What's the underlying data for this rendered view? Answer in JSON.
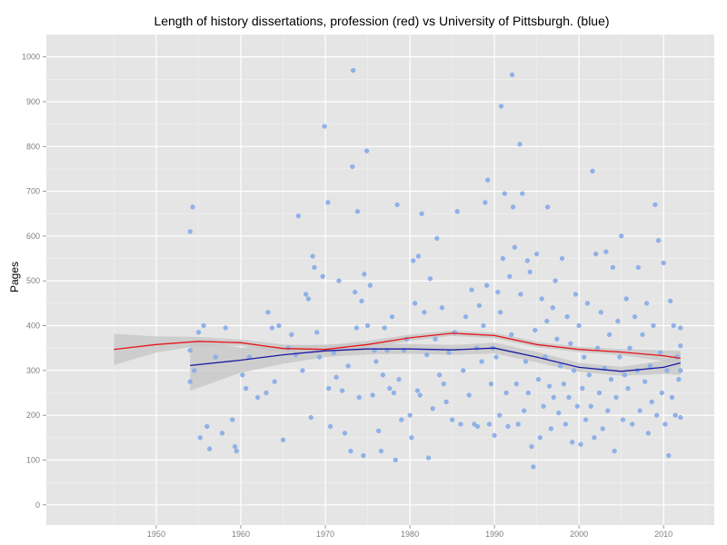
{
  "chart_data": {
    "type": "scatter",
    "title": "Length of history dissertations, profession (red) vs University of Pittsburgh. (blue)",
    "xlabel": "",
    "ylabel": "Pages",
    "xlim": [
      1937,
      2016
    ],
    "ylim": [
      -45,
      1050
    ],
    "x_ticks": [
      1950,
      1960,
      1970,
      1980,
      1990,
      2000,
      2010
    ],
    "y_ticks": [
      0,
      100,
      200,
      300,
      400,
      500,
      600,
      700,
      800,
      900,
      1000
    ],
    "grid": true,
    "legend": "none",
    "colors": {
      "panel": "#e5e5e5",
      "grid_major": "#ffffff",
      "grid_minor": "#f2f2f2",
      "points": "#8fb2ea",
      "profession_line": "#e8141a",
      "pitt_line": "#1a1aa3",
      "confidence_band": "#c4c4c4",
      "tick_text": "#7f7f7f"
    },
    "series": [
      {
        "name": "",
        "kind": "points",
        "points": [
          [
            1954,
            610
          ],
          [
            1954.3,
            665
          ],
          [
            1954,
            345
          ],
          [
            1954.5,
            300
          ],
          [
            1954,
            275
          ],
          [
            1955,
            385
          ],
          [
            1955.2,
            150
          ],
          [
            1955.6,
            400
          ],
          [
            1956,
            175
          ],
          [
            1956.3,
            125
          ],
          [
            1957,
            330
          ],
          [
            1957.8,
            160
          ],
          [
            1958.2,
            395
          ],
          [
            1959,
            190
          ],
          [
            1959.3,
            130
          ],
          [
            1959.5,
            120
          ],
          [
            1960.2,
            290
          ],
          [
            1960.6,
            260
          ],
          [
            1961,
            330
          ],
          [
            1962,
            240
          ],
          [
            1963,
            250
          ],
          [
            1963.2,
            430
          ],
          [
            1963.7,
            395
          ],
          [
            1964,
            275
          ],
          [
            1964.5,
            400
          ],
          [
            1965,
            145
          ],
          [
            1965.6,
            350
          ],
          [
            1966,
            380
          ],
          [
            1966.5,
            335
          ],
          [
            1966.8,
            645
          ],
          [
            1967.3,
            300
          ],
          [
            1967.7,
            470
          ],
          [
            1968,
            460
          ],
          [
            1968.3,
            195
          ],
          [
            1968.5,
            555
          ],
          [
            1968.7,
            530
          ],
          [
            1969,
            385
          ],
          [
            1969.3,
            330
          ],
          [
            1969.7,
            510
          ],
          [
            1969.9,
            845
          ],
          [
            1970.3,
            675
          ],
          [
            1970.4,
            260
          ],
          [
            1970.6,
            175
          ],
          [
            1971,
            340
          ],
          [
            1971.3,
            285
          ],
          [
            1971.6,
            500
          ],
          [
            1972,
            255
          ],
          [
            1972.3,
            160
          ],
          [
            1972.7,
            310
          ],
          [
            1973,
            120
          ],
          [
            1973.2,
            755
          ],
          [
            1973.3,
            970
          ],
          [
            1973.5,
            475
          ],
          [
            1973.7,
            395
          ],
          [
            1973.8,
            655
          ],
          [
            1974,
            240
          ],
          [
            1974.3,
            455
          ],
          [
            1974.5,
            110
          ],
          [
            1974.6,
            515
          ],
          [
            1974.9,
            790
          ],
          [
            1975,
            400
          ],
          [
            1975.3,
            490
          ],
          [
            1975.6,
            245
          ],
          [
            1975.8,
            345
          ],
          [
            1976,
            320
          ],
          [
            1976.3,
            165
          ],
          [
            1976.6,
            120
          ],
          [
            1976.8,
            290
          ],
          [
            1977,
            395
          ],
          [
            1977.3,
            345
          ],
          [
            1977.6,
            260
          ],
          [
            1977.9,
            420
          ],
          [
            1978.1,
            250
          ],
          [
            1978.3,
            100
          ],
          [
            1978.5,
            670
          ],
          [
            1978.7,
            280
          ],
          [
            1979,
            190
          ],
          [
            1979.3,
            345
          ],
          [
            1979.6,
            370
          ],
          [
            1980,
            200
          ],
          [
            1980.2,
            150
          ],
          [
            1980.4,
            545
          ],
          [
            1980.6,
            450
          ],
          [
            1980.9,
            255
          ],
          [
            1981,
            555
          ],
          [
            1981.2,
            245
          ],
          [
            1981.4,
            650
          ],
          [
            1981.7,
            430
          ],
          [
            1982,
            335
          ],
          [
            1982.2,
            105
          ],
          [
            1982.4,
            505
          ],
          [
            1982.7,
            215
          ],
          [
            1983,
            370
          ],
          [
            1983.2,
            595
          ],
          [
            1983.5,
            290
          ],
          [
            1983.8,
            440
          ],
          [
            1984,
            270
          ],
          [
            1984.3,
            230
          ],
          [
            1984.6,
            340
          ],
          [
            1985,
            190
          ],
          [
            1985.3,
            385
          ],
          [
            1985.6,
            655
          ],
          [
            1986,
            180
          ],
          [
            1986.3,
            300
          ],
          [
            1986.6,
            420
          ],
          [
            1987,
            245
          ],
          [
            1987.3,
            480
          ],
          [
            1987.6,
            180
          ],
          [
            1987.9,
            350
          ],
          [
            1988,
            175
          ],
          [
            1988.2,
            445
          ],
          [
            1988.5,
            320
          ],
          [
            1988.7,
            400
          ],
          [
            1988.9,
            675
          ],
          [
            1989.1,
            490
          ],
          [
            1989.2,
            725
          ],
          [
            1989.4,
            180
          ],
          [
            1989.6,
            270
          ],
          [
            1989.8,
            350
          ],
          [
            1990,
            155
          ],
          [
            1990.2,
            330
          ],
          [
            1990.4,
            475
          ],
          [
            1990.6,
            200
          ],
          [
            1990.7,
            430
          ],
          [
            1990.8,
            890
          ],
          [
            1991,
            550
          ],
          [
            1991.2,
            695
          ],
          [
            1991.4,
            250
          ],
          [
            1991.6,
            175
          ],
          [
            1991.8,
            510
          ],
          [
            1992,
            380
          ],
          [
            1992.1,
            960
          ],
          [
            1992.2,
            665
          ],
          [
            1992.4,
            575
          ],
          [
            1992.6,
            270
          ],
          [
            1992.8,
            180
          ],
          [
            1993,
            805
          ],
          [
            1993.1,
            470
          ],
          [
            1993.3,
            695
          ],
          [
            1993.5,
            210
          ],
          [
            1993.7,
            320
          ],
          [
            1993.9,
            545
          ],
          [
            1994,
            250
          ],
          [
            1994.2,
            520
          ],
          [
            1994.4,
            130
          ],
          [
            1994.6,
            85
          ],
          [
            1994.8,
            390
          ],
          [
            1995,
            560
          ],
          [
            1995.2,
            280
          ],
          [
            1995.4,
            150
          ],
          [
            1995.6,
            460
          ],
          [
            1995.8,
            220
          ],
          [
            1996,
            330
          ],
          [
            1996.2,
            410
          ],
          [
            1996.3,
            665
          ],
          [
            1996.5,
            265
          ],
          [
            1996.7,
            170
          ],
          [
            1996.9,
            440
          ],
          [
            1997,
            240
          ],
          [
            1997.2,
            500
          ],
          [
            1997.4,
            370
          ],
          [
            1997.6,
            205
          ],
          [
            1997.8,
            310
          ],
          [
            1998,
            550
          ],
          [
            1998.2,
            270
          ],
          [
            1998.4,
            180
          ],
          [
            1998.6,
            420
          ],
          [
            1998.8,
            240
          ],
          [
            1999,
            360
          ],
          [
            1999.2,
            140
          ],
          [
            1999.4,
            300
          ],
          [
            1999.6,
            470
          ],
          [
            1999.8,
            220
          ],
          [
            2000,
            400
          ],
          [
            2000.2,
            135
          ],
          [
            2000.4,
            260
          ],
          [
            2000.6,
            330
          ],
          [
            2000.8,
            190
          ],
          [
            2001,
            450
          ],
          [
            2001.2,
            290
          ],
          [
            2001.4,
            220
          ],
          [
            2001.6,
            745
          ],
          [
            2001.8,
            150
          ],
          [
            2002,
            560
          ],
          [
            2002.2,
            350
          ],
          [
            2002.4,
            250
          ],
          [
            2002.6,
            430
          ],
          [
            2002.8,
            170
          ],
          [
            2003,
            305
          ],
          [
            2003.2,
            565
          ],
          [
            2003.4,
            210
          ],
          [
            2003.6,
            380
          ],
          [
            2003.8,
            280
          ],
          [
            2004,
            530
          ],
          [
            2004.2,
            120
          ],
          [
            2004.4,
            240
          ],
          [
            2004.6,
            410
          ],
          [
            2004.8,
            330
          ],
          [
            2005,
            600
          ],
          [
            2005.2,
            190
          ],
          [
            2005.4,
            290
          ],
          [
            2005.6,
            460
          ],
          [
            2005.8,
            260
          ],
          [
            2006,
            350
          ],
          [
            2006.3,
            180
          ],
          [
            2006.6,
            420
          ],
          [
            2006.9,
            300
          ],
          [
            2007,
            530
          ],
          [
            2007.2,
            210
          ],
          [
            2007.5,
            380
          ],
          [
            2007.8,
            275
          ],
          [
            2008,
            450
          ],
          [
            2008.2,
            160
          ],
          [
            2008.4,
            310
          ],
          [
            2008.6,
            230
          ],
          [
            2008.8,
            400
          ],
          [
            2009,
            670
          ],
          [
            2009.2,
            200
          ],
          [
            2009.4,
            590
          ],
          [
            2009.6,
            340
          ],
          [
            2009.8,
            250
          ],
          [
            2010,
            540
          ],
          [
            2010.2,
            180
          ],
          [
            2010.4,
            300
          ],
          [
            2010.6,
            110
          ],
          [
            2010.8,
            455
          ],
          [
            2011,
            240
          ],
          [
            2011.2,
            400
          ],
          [
            2011.4,
            200
          ],
          [
            2011.6,
            330
          ],
          [
            2011.8,
            280
          ],
          [
            2012,
            395
          ],
          [
            2012,
            300
          ],
          [
            2012,
            195
          ],
          [
            2012,
            355
          ]
        ]
      },
      {
        "name": "",
        "kind": "smooth_with_band",
        "x": [
          1945,
          1950,
          1955,
          1960,
          1965,
          1970,
          1975,
          1980,
          1985,
          1990,
          1995,
          2000,
          2005,
          2010,
          2012
        ],
        "y": [
          347,
          358,
          365,
          362,
          349,
          347,
          358,
          373,
          383,
          378,
          358,
          347,
          341,
          333,
          327
        ],
        "band_low": [
          312,
          340,
          355,
          355,
          340,
          338,
          350,
          366,
          377,
          372,
          352,
          341,
          334,
          321,
          310
        ],
        "band_high": [
          382,
          376,
          375,
          369,
          358,
          356,
          366,
          380,
          389,
          384,
          364,
          353,
          348,
          345,
          344
        ]
      },
      {
        "name": "",
        "kind": "smooth_with_band",
        "x": [
          1954,
          1960,
          1965,
          1970,
          1975,
          1980,
          1985,
          1990,
          1995,
          2000,
          2005,
          2010,
          2012
        ],
        "y": [
          311,
          323,
          335,
          344,
          348,
          348,
          346,
          350,
          330,
          307,
          298,
          307,
          317
        ],
        "band_low": [
          255,
          295,
          315,
          330,
          336,
          337,
          335,
          338,
          318,
          297,
          288,
          292,
          290
        ],
        "band_high": [
          366,
          351,
          355,
          358,
          360,
          359,
          357,
          362,
          342,
          317,
          308,
          322,
          344
        ]
      }
    ]
  }
}
